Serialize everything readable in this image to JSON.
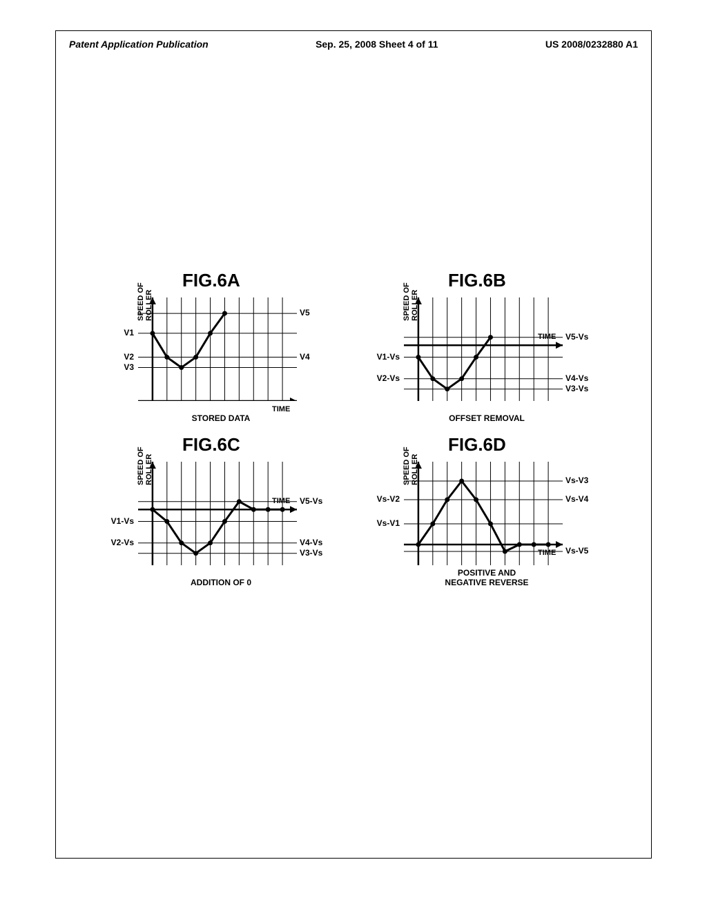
{
  "header": {
    "left": "Patent Application Publication",
    "center": "Sep. 25, 2008  Sheet 4 of 11",
    "right": "US 2008/0232880 A1"
  },
  "figures": {
    "a": {
      "title": "FIG.6A",
      "caption": "STORED DATA",
      "ylabel": "SPEED OF\nROLLER",
      "xlabel": "TIME",
      "yticks_left": [
        "V1",
        "V2",
        "V3"
      ],
      "rticks": [
        "V5",
        "V4"
      ],
      "type": "line",
      "chart": {
        "grid_color": "#000000",
        "grid_width": 1,
        "curve_color": "#000000",
        "curve_width": 3,
        "marker_color": "#000000",
        "marker_r": 3.5,
        "x_range": [
          0,
          220
        ],
        "y_range": [
          0,
          130
        ],
        "origin_y": 0,
        "vlines_x": [
          20,
          40,
          60,
          80,
          100,
          120,
          140,
          160,
          180,
          200
        ],
        "hlines_y": [
          42,
          55,
          85,
          110
        ],
        "points": [
          [
            20,
            85
          ],
          [
            40,
            55
          ],
          [
            60,
            42
          ],
          [
            80,
            55
          ],
          [
            100,
            85
          ],
          [
            120,
            110
          ]
        ],
        "arrow_y": true,
        "arrow_x": true,
        "xlabel_pos": "below_right",
        "ytick_y": {
          "V1": 85,
          "V2": 55,
          "V3": 42
        },
        "rtick_y": {
          "V5": 110,
          "V4": 55
        }
      }
    },
    "b": {
      "title": "FIG.6B",
      "caption": "OFFSET REMOVAL",
      "ylabel": "SPEED OF\nROLLER",
      "xlabel": "TIME",
      "yticks_left": [
        "V1-Vs",
        "V2-Vs"
      ],
      "rticks": [
        "V5-Vs",
        "V4-Vs",
        "V3-Vs"
      ],
      "type": "line",
      "chart": {
        "grid_color": "#000000",
        "grid_width": 1,
        "curve_color": "#000000",
        "curve_width": 3,
        "marker_color": "#000000",
        "marker_r": 3.5,
        "x_range": [
          0,
          220
        ],
        "y_range": [
          -70,
          60
        ],
        "origin_y": 0,
        "vlines_x": [
          20,
          40,
          60,
          80,
          100,
          120,
          140,
          160,
          180,
          200
        ],
        "hlines_y": [
          -55,
          -42,
          -15,
          10
        ],
        "points": [
          [
            20,
            -15
          ],
          [
            40,
            -42
          ],
          [
            60,
            -55
          ],
          [
            80,
            -42
          ],
          [
            100,
            -15
          ],
          [
            120,
            10
          ]
        ],
        "arrow_y": true,
        "arrow_x": true,
        "xlabel_pos": "above_right",
        "ytick_y": {
          "V1-Vs": -15,
          "V2-Vs": -42
        },
        "rtick_y": {
          "V5-Vs": 10,
          "V4-Vs": -42,
          "V3-Vs": -55
        }
      }
    },
    "c": {
      "title": "FIG.6C",
      "caption": "ADDITION OF 0",
      "ylabel": "SPEED OF\nROLLER",
      "xlabel": "TIME",
      "yticks_left": [
        "V1-Vs",
        "V2-Vs"
      ],
      "rticks": [
        "V5-Vs",
        "V4-Vs",
        "V3-Vs"
      ],
      "type": "line",
      "chart": {
        "grid_color": "#000000",
        "grid_width": 1,
        "curve_color": "#000000",
        "curve_width": 3,
        "marker_color": "#000000",
        "marker_r": 3.5,
        "x_range": [
          0,
          220
        ],
        "y_range": [
          -70,
          60
        ],
        "origin_y": 0,
        "vlines_x": [
          20,
          40,
          60,
          80,
          100,
          120,
          140,
          160,
          180,
          200
        ],
        "hlines_y": [
          -55,
          -42,
          -15,
          10
        ],
        "points": [
          [
            20,
            0
          ],
          [
            40,
            -15
          ],
          [
            60,
            -42
          ],
          [
            80,
            -55
          ],
          [
            100,
            -42
          ],
          [
            120,
            -15
          ],
          [
            140,
            10
          ],
          [
            160,
            0
          ],
          [
            180,
            0
          ],
          [
            200,
            0
          ]
        ],
        "arrow_y": true,
        "arrow_x": true,
        "xlabel_pos": "above_right",
        "ytick_y": {
          "V1-Vs": -15,
          "V2-Vs": -42
        },
        "rtick_y": {
          "V5-Vs": 10,
          "V4-Vs": -42,
          "V3-Vs": -55
        }
      }
    },
    "d": {
      "title": "FIG.6D",
      "caption": "POSITIVE AND\nNEGATIVE REVERSE",
      "ylabel": "SPEED OF\nROLLER",
      "xlabel": "TIME",
      "yticks_left": [
        "Vs-V2",
        "Vs-V1"
      ],
      "rticks": [
        "Vs-V3",
        "Vs-V4",
        "Vs-V5"
      ],
      "type": "line",
      "chart": {
        "grid_color": "#000000",
        "grid_width": 1,
        "curve_color": "#000000",
        "curve_width": 3,
        "marker_color": "#000000",
        "marker_r": 3.5,
        "x_range": [
          0,
          220
        ],
        "y_range": [
          -30,
          120
        ],
        "origin_y": 0,
        "vlines_x": [
          20,
          40,
          60,
          80,
          100,
          120,
          140,
          160,
          180,
          200
        ],
        "hlines_y": [
          -10,
          30,
          65,
          92
        ],
        "points": [
          [
            20,
            0
          ],
          [
            40,
            30
          ],
          [
            60,
            65
          ],
          [
            80,
            92
          ],
          [
            100,
            65
          ],
          [
            120,
            30
          ],
          [
            140,
            -10
          ],
          [
            160,
            0
          ],
          [
            180,
            0
          ],
          [
            200,
            0
          ]
        ],
        "arrow_y": true,
        "arrow_x": true,
        "xlabel_pos": "below_right",
        "ytick_y": {
          "Vs-V2": 65,
          "Vs-V1": 30
        },
        "rtick_y": {
          "Vs-V3": 92,
          "Vs-V4": 65,
          "Vs-V5": -10
        }
      }
    }
  }
}
